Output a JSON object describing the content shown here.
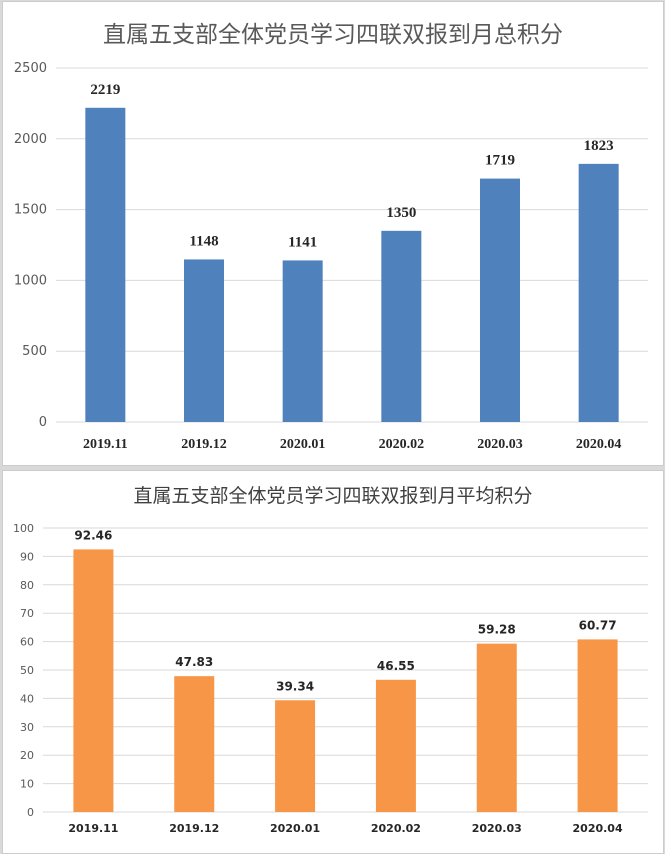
{
  "chart_data": [
    {
      "type": "bar",
      "title": "直属五支部全体党员学习四联双报到月总积分",
      "categories": [
        "2019.11",
        "2019.12",
        "2020.01",
        "2020.02",
        "2020.03",
        "2020.04"
      ],
      "values": [
        2219,
        1148,
        1141,
        1350,
        1719,
        1823
      ],
      "data_labels": [
        "2219",
        "1148",
        "1141",
        "1350",
        "1719",
        "1823"
      ],
      "yticks": [
        "0",
        "500",
        "1000",
        "1500",
        "2000",
        "2500"
      ],
      "ylim": [
        0,
        2500
      ],
      "color": "#4f81bd",
      "grid": true,
      "xlabel": "",
      "ylabel": ""
    },
    {
      "type": "bar",
      "title": "直属五支部全体党员学习四联双报到月平均积分",
      "categories": [
        "2019.11",
        "2019.12",
        "2020.01",
        "2020.02",
        "2020.03",
        "2020.04"
      ],
      "values": [
        92.46,
        47.83,
        39.34,
        46.55,
        59.28,
        60.77
      ],
      "data_labels": [
        "92.46",
        "47.83",
        "39.34",
        "46.55",
        "59.28",
        "60.77"
      ],
      "yticks": [
        "0",
        "10",
        "20",
        "30",
        "40",
        "50",
        "60",
        "70",
        "80",
        "90",
        "100"
      ],
      "ylim": [
        0,
        100
      ],
      "color": "#f79646",
      "grid": true,
      "xlabel": "",
      "ylabel": ""
    }
  ]
}
